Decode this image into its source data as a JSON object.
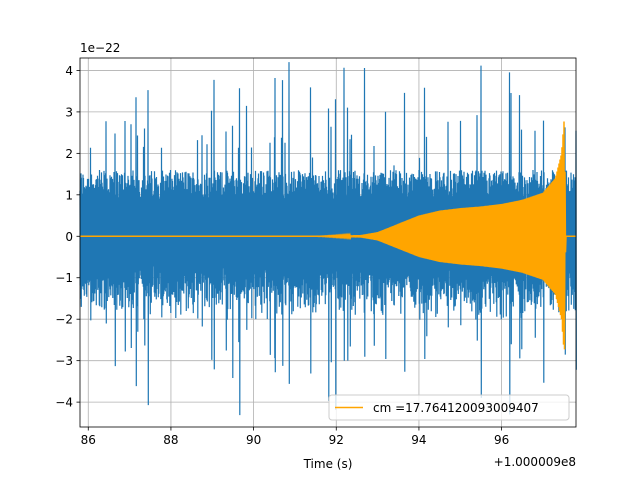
{
  "chart_data": {
    "type": "line",
    "title": "",
    "xlabel": "Time (s)",
    "ylabel": "",
    "x_offset_label": "+1.000009e8",
    "y_scale_label": "1e−22",
    "xlim": [
      85.8,
      97.8
    ],
    "ylim": [
      -4.6,
      4.3
    ],
    "x_ticks": [
      86,
      88,
      90,
      92,
      94,
      96
    ],
    "x_tick_labels": [
      "86",
      "88",
      "90",
      "92",
      "94",
      "96"
    ],
    "y_ticks": [
      -4,
      -3,
      -2,
      -1,
      0,
      1,
      2,
      3,
      4
    ],
    "y_tick_labels": [
      "−4",
      "−3",
      "−2",
      "−1",
      "0",
      "1",
      "2",
      "3",
      "4"
    ],
    "grid": true,
    "legend_position": "lower-right",
    "series": [
      {
        "key": "strain",
        "color": "#1f77b4",
        "x_range": [
          85.8,
          97.8
        ],
        "envelope_typical": 1.6,
        "envelope_peak": 4.2,
        "values_shown": "dense noise band"
      },
      {
        "key": "template",
        "name": "cm =17.764120093009407",
        "color": "#ffa500",
        "envelope": [
          {
            "x": 85.8,
            "amp": 0.0
          },
          {
            "x": 91.5,
            "amp": 0.0
          },
          {
            "x": 92.6,
            "amp": 0.03
          },
          {
            "x": 93.0,
            "amp": 0.1
          },
          {
            "x": 93.5,
            "amp": 0.3
          },
          {
            "x": 94.0,
            "amp": 0.5
          },
          {
            "x": 94.5,
            "amp": 0.62
          },
          {
            "x": 95.0,
            "amp": 0.68
          },
          {
            "x": 95.5,
            "amp": 0.72
          },
          {
            "x": 96.0,
            "amp": 0.78
          },
          {
            "x": 96.5,
            "amp": 0.88
          },
          {
            "x": 97.0,
            "amp": 1.05
          },
          {
            "x": 97.3,
            "amp": 1.4
          },
          {
            "x": 97.45,
            "amp": 2.0
          },
          {
            "x": 97.52,
            "amp": 2.9
          },
          {
            "x": 97.55,
            "amp": 0.0
          },
          {
            "x": 97.8,
            "amp": 0.0
          }
        ]
      }
    ]
  }
}
